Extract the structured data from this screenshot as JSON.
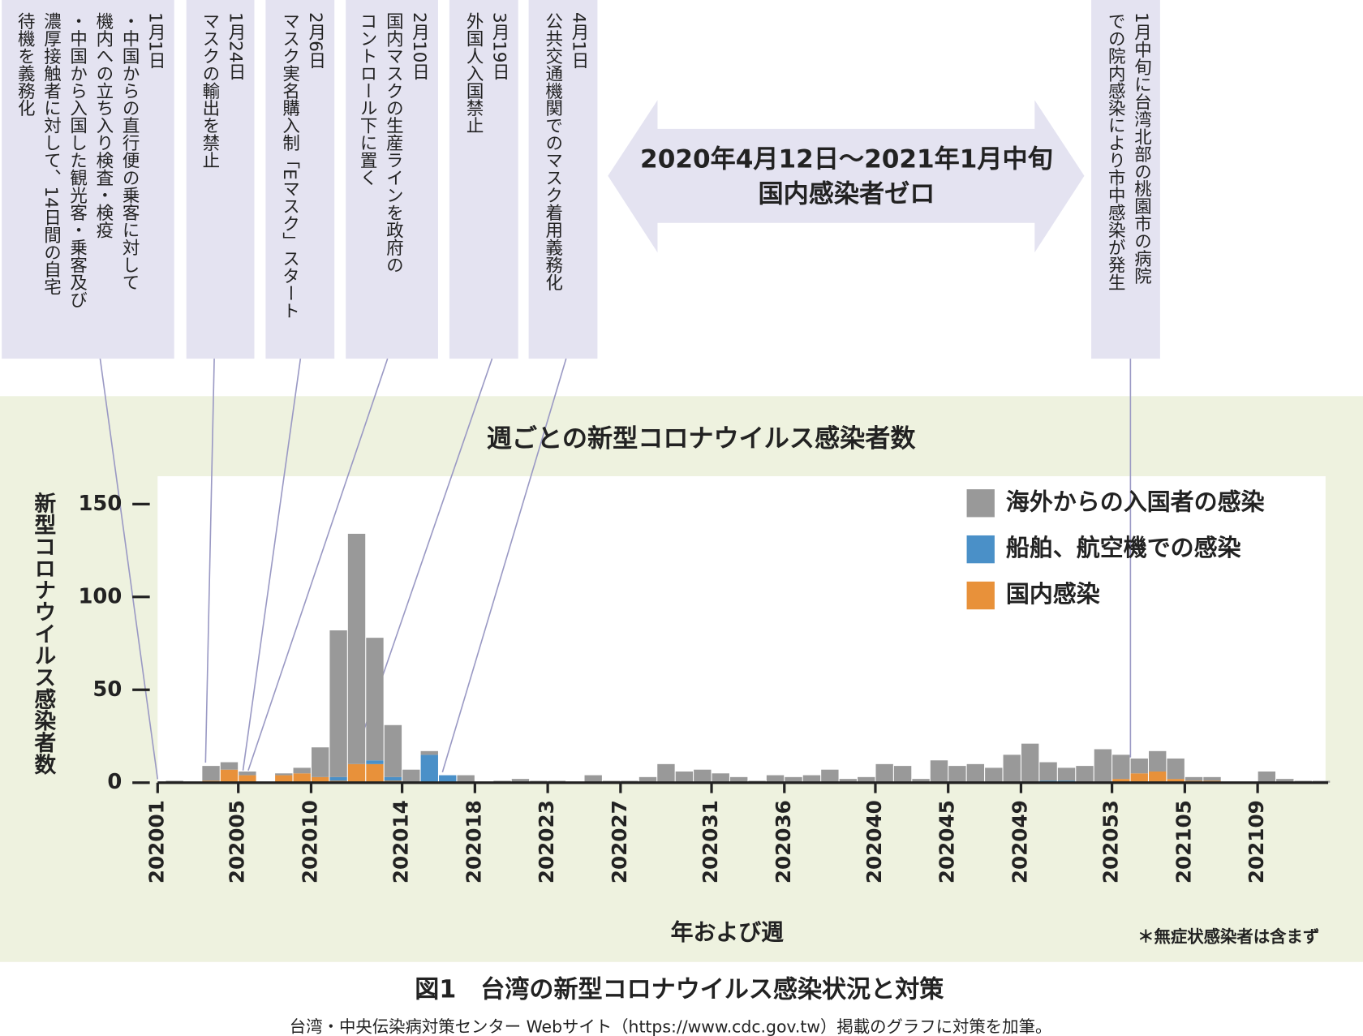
{
  "chart_data": {
    "type": "bar",
    "stacked": true,
    "title": "週ごとの新型コロナウイルス感染者数",
    "y_label": "新型コロナウイルス感染者数",
    "x_label": "年および週",
    "note": "＊無症状感染者は含まず",
    "categories": [
      "202001",
      null,
      null,
      null,
      "202005",
      null,
      null,
      null,
      "202010",
      null,
      null,
      null,
      null,
      "202014",
      null,
      null,
      null,
      "202018",
      null,
      null,
      null,
      "202023",
      null,
      null,
      null,
      "202027",
      null,
      null,
      null,
      null,
      "202031",
      null,
      null,
      null,
      "202036",
      null,
      null,
      null,
      null,
      "202040",
      null,
      null,
      null,
      "202045",
      null,
      null,
      null,
      "202049",
      null,
      null,
      null,
      null,
      "202053",
      null,
      null,
      null,
      "202105",
      null,
      null,
      null,
      "202109",
      null,
      null,
      null
    ],
    "series": [
      {
        "name": "海外からの入国者の感染",
        "color": "#999999",
        "values": [
          1,
          0,
          8,
          4,
          2,
          0,
          1,
          3,
          16,
          79,
          124,
          66,
          28,
          7,
          2,
          0,
          4,
          0,
          1,
          2,
          1,
          1,
          0,
          4,
          1,
          1,
          3,
          10,
          6,
          7,
          5,
          3,
          1,
          4,
          3,
          4,
          7,
          2,
          3,
          10,
          9,
          2,
          12,
          9,
          10,
          8,
          15,
          21,
          10,
          7,
          9,
          18,
          13,
          8,
          11,
          11,
          2,
          2,
          0,
          0,
          6,
          2,
          1,
          1
        ]
      },
      {
        "name": "船舶、航空機での感染",
        "color": "#4a90c8",
        "values": [
          0,
          0,
          0,
          0,
          0,
          0,
          0,
          0,
          0,
          2,
          0,
          2,
          2,
          0,
          15,
          4,
          0,
          0,
          0,
          0,
          0,
          0,
          0,
          0,
          0,
          0,
          0,
          0,
          0,
          0,
          0,
          0,
          0,
          0,
          0,
          0,
          0,
          0,
          0,
          0,
          0,
          0,
          0,
          0,
          0,
          0,
          0,
          0,
          1,
          1,
          0,
          0,
          0,
          0,
          0,
          0,
          0,
          0,
          0,
          0,
          0,
          0,
          0,
          0
        ]
      },
      {
        "name": "国内感染",
        "color": "#e8913a",
        "values": [
          0,
          0,
          1,
          7,
          4,
          0,
          4,
          5,
          3,
          1,
          10,
          10,
          1,
          0,
          0,
          0,
          0,
          0,
          0,
          0,
          0,
          0,
          0,
          0,
          0,
          0,
          0,
          0,
          0,
          0,
          0,
          0,
          0,
          0,
          0,
          0,
          0,
          0,
          0,
          0,
          0,
          0,
          0,
          0,
          0,
          0,
          0,
          0,
          0,
          0,
          0,
          0,
          2,
          5,
          6,
          2,
          1,
          1,
          0,
          0,
          0,
          0,
          0,
          0
        ]
      }
    ],
    "ylim": [
      0,
      165
    ],
    "yticks": [
      0,
      50,
      100,
      150
    ],
    "grid": false,
    "legend": "upper right",
    "annotations": [
      {
        "date": "1月1日",
        "lines": [
          "・中国からの直行便の乗客に対して",
          "機内への立ち入り検査・検疫",
          "・中国から入国した観光客・乗客及び",
          "濃厚接触者に対して、14日間の自宅",
          "待機を義務化"
        ]
      },
      {
        "date": "1月24日",
        "lines": [
          "マスクの輸出を禁止"
        ]
      },
      {
        "date": "2月6日",
        "lines": [
          "マスク実名購入制「Eマスク」スタート"
        ]
      },
      {
        "date": "2月10日",
        "lines": [
          "国内マスクの生産ラインを政府の",
          "コントロール下に置く"
        ]
      },
      {
        "date": "3月19日",
        "lines": [
          "外国人入国禁止"
        ]
      },
      {
        "date": "4月1日",
        "lines": [
          "公共交通機関でのマスク着用義務化"
        ]
      },
      {
        "lines": [
          "1月中旬に台湾北部の桃園市の病院",
          "での院内感染により市中感染が発生"
        ]
      }
    ],
    "period_note": [
      "2020年4月12日〜2021年1月中旬",
      "国内感染者ゼロ"
    ]
  },
  "caption": "図1　台湾の新型コロナウイルス感染状況と対策",
  "source": "台湾・中央伝染病対策センター Webサイト（https://www.cdc.gov.tw）掲載のグラフに対策を加筆。"
}
